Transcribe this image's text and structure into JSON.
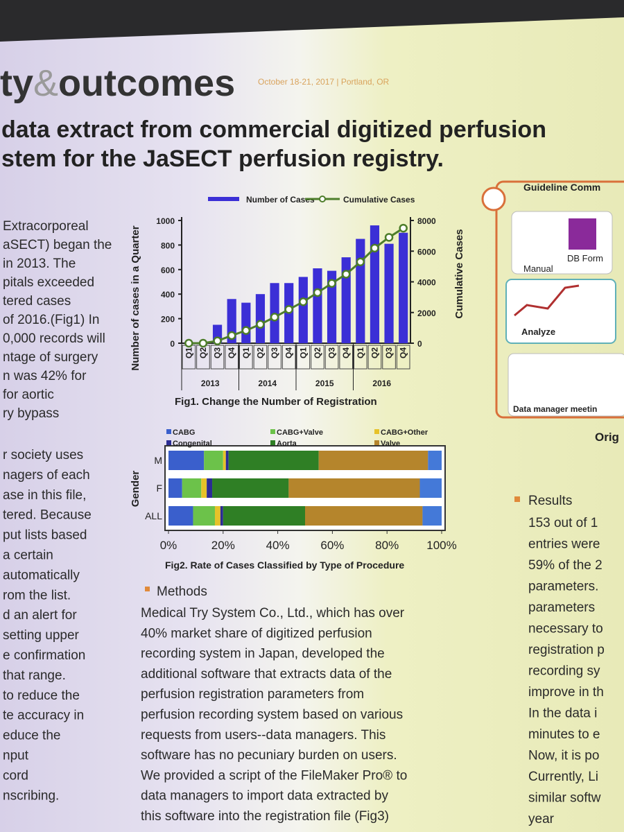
{
  "header": {
    "brand_start": "ty",
    "brand_amp": "&",
    "brand_end": "outcomes",
    "date": "October 18-21, 2017 | Portland, OR"
  },
  "heading": [
    "data extract from commercial digitized perfusion",
    "stem for the JaSECT perfusion registry."
  ],
  "left_column": {
    "intro": [
      "Extracorporeal",
      "aSECT) began the",
      "in 2013. The",
      "pitals exceeded",
      "tered cases",
      "of 2016.(Fig1) In",
      "0,000 records will",
      "ntage of surgery",
      "n was 42% for",
      "for aortic",
      "ry bypass"
    ],
    "body": [
      "r society uses",
      "nagers of each",
      "ase in this file,",
      "tered. Because",
      "put lists based",
      "a certain",
      "automatically",
      "rom the list.",
      "d an alert for",
      "setting upper",
      "e confirmation",
      "that range.",
      "to reduce the",
      "te accuracy in",
      "educe the",
      "nput",
      "cord",
      "nscribing."
    ]
  },
  "chart_data": [
    {
      "type": "bar",
      "title": "Fig1. Change the Number of Registration",
      "categories": [
        "Q1",
        "Q2",
        "Q3",
        "Q4",
        "Q1",
        "Q2",
        "Q3",
        "Q4",
        "Q1",
        "Q2",
        "Q3",
        "Q4",
        "Q1",
        "Q2",
        "Q3",
        "Q4"
      ],
      "category_groups": [
        "2013",
        "2014",
        "2015",
        "2016"
      ],
      "y_label": "Number of cases in a Quarter",
      "y2_label": "Cumulative Cases",
      "ylim": [
        0,
        1000
      ],
      "yticks": [
        0,
        200,
        400,
        600,
        800,
        1000
      ],
      "y2lim": [
        0,
        8000
      ],
      "y2ticks": [
        0,
        2000,
        4000,
        6000,
        8000
      ],
      "series": [
        {
          "name": "Number of Cases",
          "type": "bar",
          "color": "#3b2fd6",
          "values": [
            0,
            0,
            150,
            360,
            330,
            400,
            490,
            490,
            540,
            610,
            590,
            700,
            850,
            960,
            810,
            900
          ]
        },
        {
          "name": "Cumulative Cases",
          "type": "line",
          "axis": "y2",
          "color": "#4d7d2a",
          "values": [
            0,
            0,
            150,
            500,
            830,
            1230,
            1700,
            2200,
            2700,
            3300,
            3900,
            4500,
            5300,
            6200,
            6900,
            7500
          ]
        }
      ]
    },
    {
      "type": "stacked_barh",
      "title": "Fig2. Rate of Cases Classified by Type of Procedure",
      "categories": [
        "M",
        "F",
        "ALL"
      ],
      "y_label": "Gender",
      "xlim": [
        0,
        100
      ],
      "xticks": [
        {
          "value": 0,
          "label": "0%"
        },
        {
          "value": 20,
          "label": "20%"
        },
        {
          "value": 40,
          "label": "40%"
        },
        {
          "value": 60,
          "label": "60%"
        },
        {
          "value": 80,
          "label": "80%"
        },
        {
          "value": 100,
          "label": "100%"
        }
      ],
      "series": [
        {
          "name": "CABG",
          "color": "#3a5fcc",
          "values": [
            13,
            5,
            9
          ]
        },
        {
          "name": "CABG+Valve",
          "color": "#6cc24a",
          "values": [
            7,
            7,
            8
          ]
        },
        {
          "name": "CABG+Other",
          "color": "#e6c229",
          "values": [
            1,
            2,
            2
          ]
        },
        {
          "name": "Congenital",
          "color": "#2b2c94",
          "values": [
            1,
            2,
            1
          ]
        },
        {
          "name": "Aorta",
          "color": "#2f7f25",
          "values": [
            33,
            28,
            30
          ]
        },
        {
          "name": "Valve",
          "color": "#b5852c",
          "values": [
            40,
            48,
            43
          ]
        },
        {
          "name": null,
          "color": "#4479d8",
          "values": [
            5,
            8,
            7
          ]
        }
      ]
    }
  ],
  "methods": {
    "title": "Methods",
    "lines": [
      "Medical Try System Co., Ltd., which has over",
      "40% market share of digitized perfusion",
      "recording system in Japan, developed the",
      "additional software that extracts data of the",
      "perfusion registration parameters from",
      "perfusion recording system based on various",
      "requests from users--data managers. This",
      "software has no pecuniary burden on users.",
      "We provided a script of the FileMaker Pro® to",
      "data managers to import data extracted by",
      "this software into the registration file (Fig3)"
    ]
  },
  "right_panel": {
    "title": "Guideline Comm",
    "manual": "Manual",
    "db_form": "DB Form",
    "analyze": "Analyze",
    "meeting": "Data manager meetin",
    "caption": "Orig"
  },
  "results": {
    "title": "Results",
    "lines": [
      "153 out of 1",
      "entries were",
      "59% of the 2",
      "parameters.",
      "parameters",
      "necessary to",
      "registration p",
      "recording sy",
      "improve in th",
      "In the data i",
      "minutes to e",
      "Now, it is po",
      "Currently, Li",
      "similar softw",
      "year"
    ]
  }
}
